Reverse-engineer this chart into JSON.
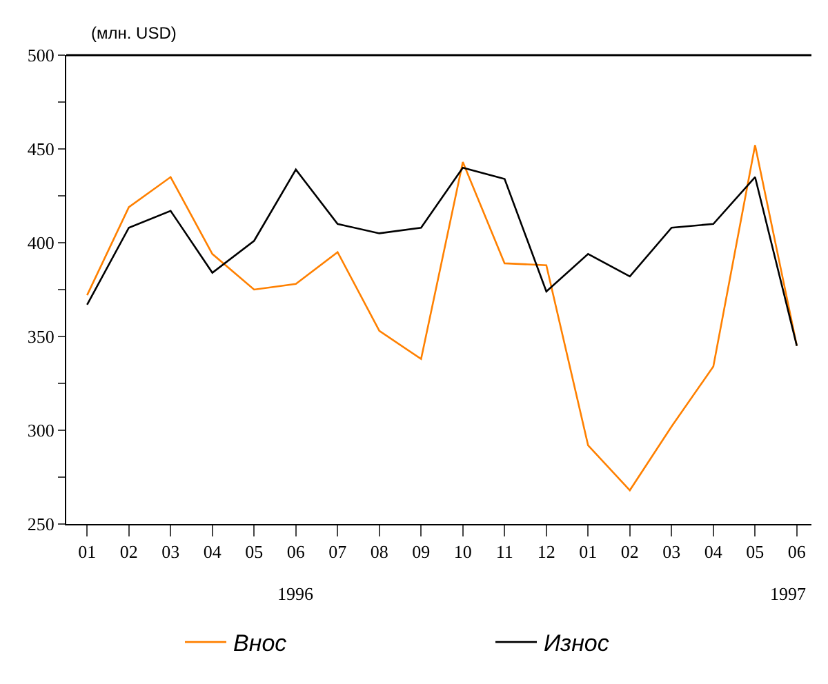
{
  "chart_data": {
    "type": "line",
    "ylabel": "(млн. USD)",
    "categories": [
      "01",
      "02",
      "03",
      "04",
      "05",
      "06",
      "07",
      "08",
      "09",
      "10",
      "11",
      "12",
      "01",
      "02",
      "03",
      "04",
      "05",
      "06"
    ],
    "series": [
      {
        "name": "Внос",
        "color": "#ff8000",
        "values": [
          372,
          419,
          435,
          394,
          375,
          378,
          395,
          353,
          338,
          443,
          389,
          388,
          292,
          268,
          302,
          334,
          452,
          345
        ]
      },
      {
        "name": "Износ",
        "color": "#000000",
        "values": [
          367,
          408,
          417,
          384,
          401,
          439,
          410,
          405,
          408,
          440,
          434,
          374,
          394,
          382,
          408,
          410,
          435,
          345
        ]
      }
    ],
    "ylim": [
      250,
      500
    ],
    "yticks": [
      250,
      {
        "value": 275,
        "label": null
      },
      300,
      {
        "value": 325,
        "label": null
      },
      350,
      {
        "value": 375,
        "label": null
      },
      400,
      {
        "value": 425,
        "label": null
      },
      450,
      {
        "value": 475,
        "label": null
      },
      500
    ],
    "annotations": [
      "1996",
      "1997"
    ],
    "legend": "bottom",
    "marker": "none",
    "line_style": "solid"
  }
}
